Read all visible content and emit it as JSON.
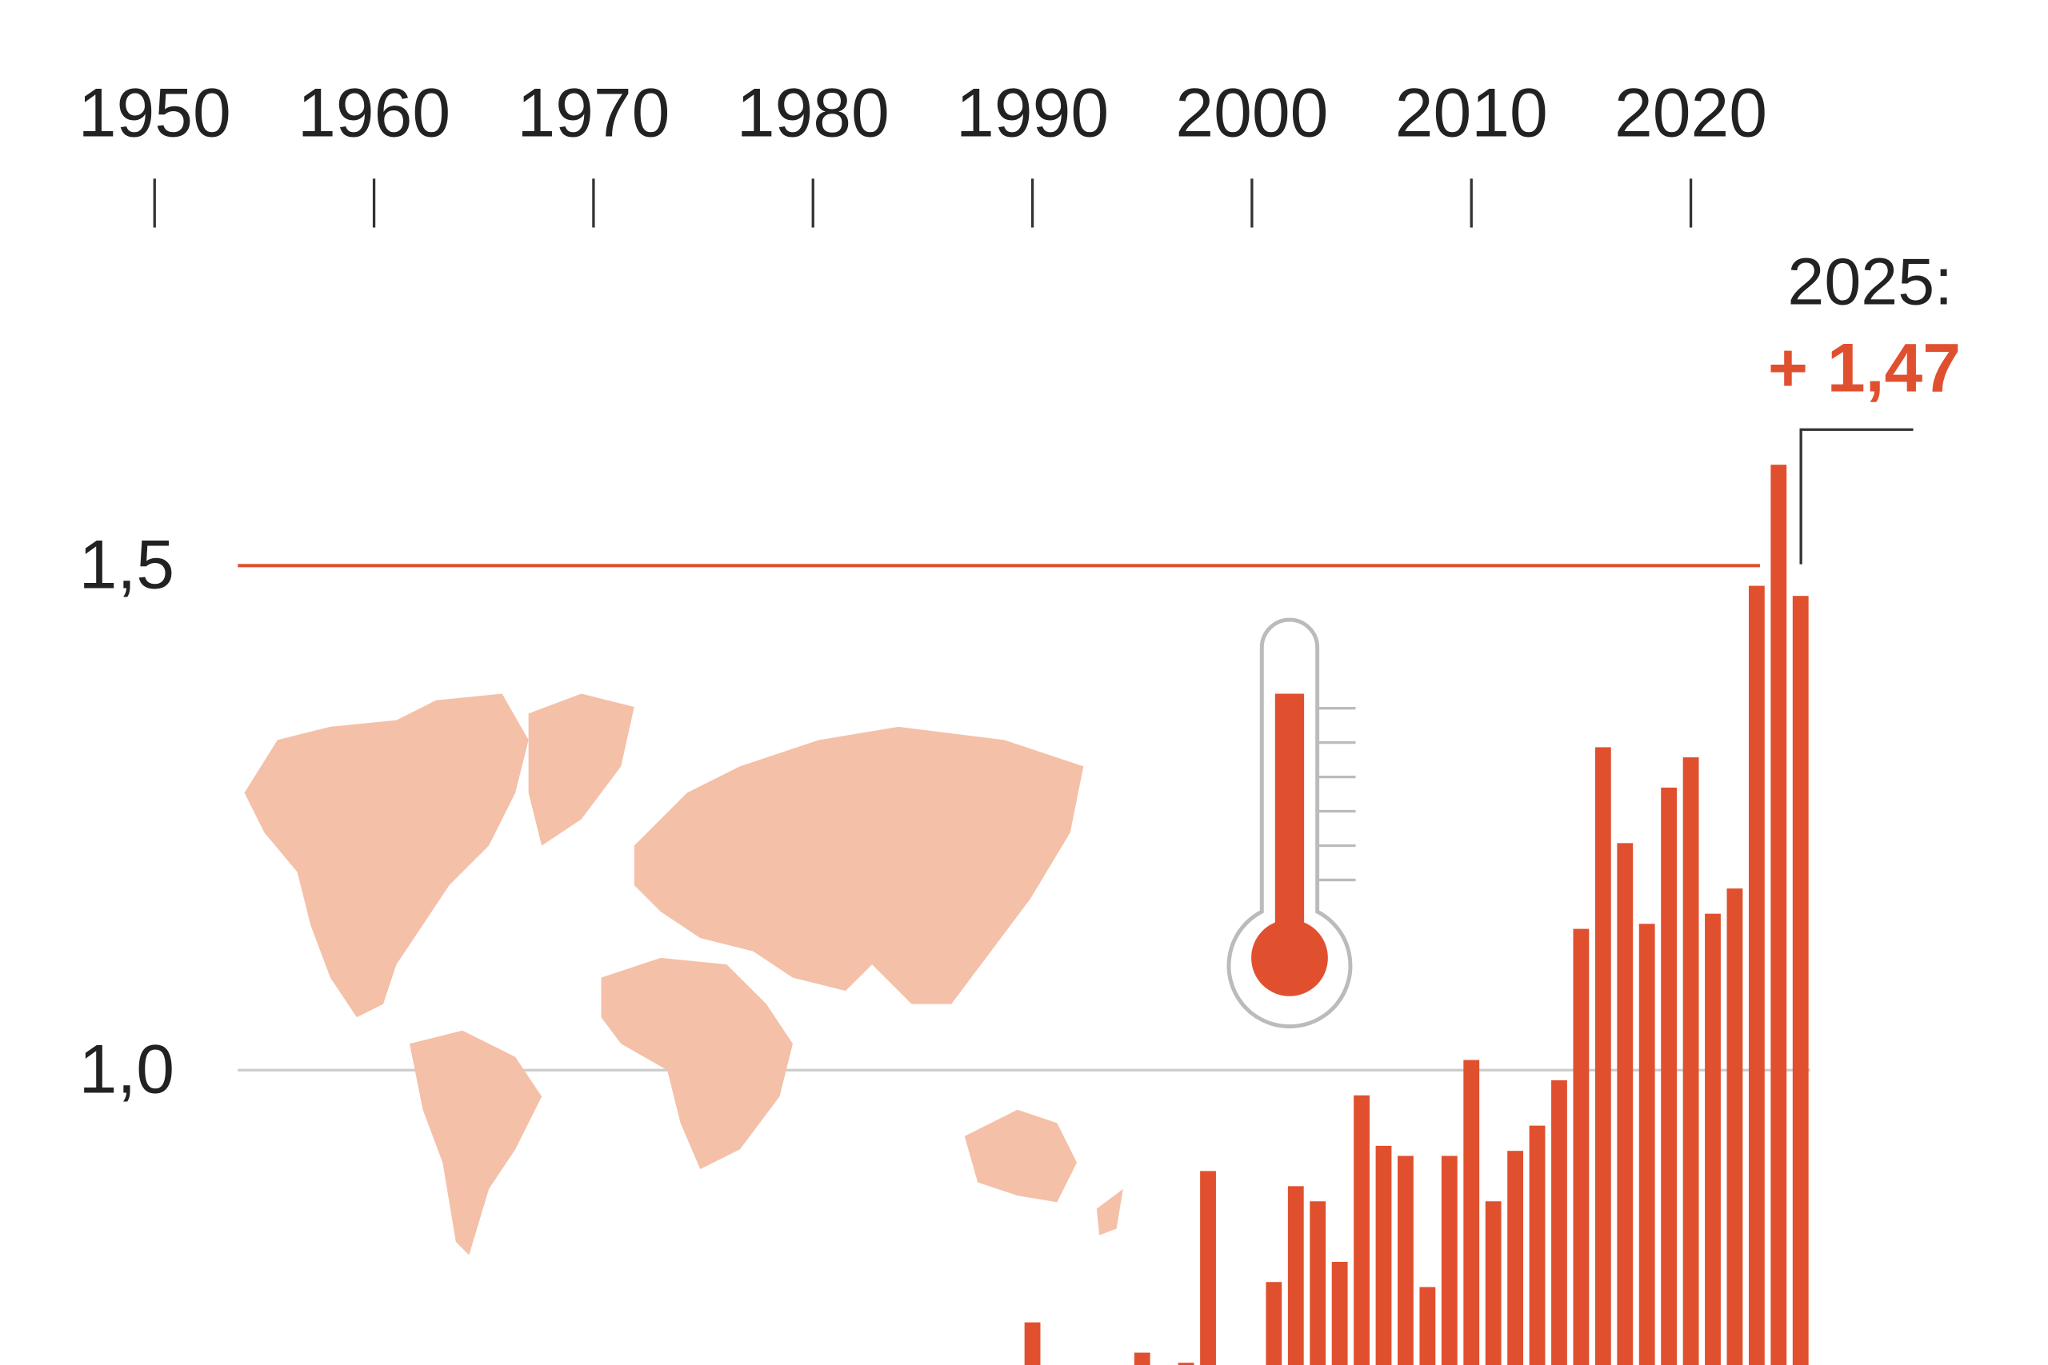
{
  "chart_data": {
    "type": "bar",
    "x_ticks": [
      "1950",
      "1960",
      "1970",
      "1980",
      "1990",
      "2000",
      "2010",
      "2020"
    ],
    "y_ticks": [
      {
        "value": 1.5,
        "label": "1,5"
      },
      {
        "value": 1.0,
        "label": "1,0"
      }
    ],
    "xlim": [
      1950,
      2025
    ],
    "ylim": [
      0.69,
      1.85
    ],
    "grid": "horizontal reference lines at 1,0 and 1,5",
    "reference_line": {
      "value": 1.5,
      "color": "#e0502f"
    },
    "bar_color": "#e0502f",
    "map_color": "#f4c0a8",
    "icons": [
      "world-map",
      "thermometer"
    ],
    "annotation": {
      "year_label": "2025:",
      "value_label": "+ 1,47",
      "year": 2025,
      "value": 1.47
    },
    "bars": [
      {
        "x": 1990,
        "y": 0.75
      },
      {
        "x": 1995,
        "y": 0.72
      },
      {
        "x": 1997,
        "y": 0.71
      },
      {
        "x": 1998,
        "y": 0.9
      },
      {
        "x": 2001,
        "y": 0.79
      },
      {
        "x": 2002,
        "y": 0.885
      },
      {
        "x": 2003,
        "y": 0.87
      },
      {
        "x": 2004,
        "y": 0.81
      },
      {
        "x": 2005,
        "y": 0.975
      },
      {
        "x": 2006,
        "y": 0.925
      },
      {
        "x": 2007,
        "y": 0.915
      },
      {
        "x": 2008,
        "y": 0.785
      },
      {
        "x": 2009,
        "y": 0.915
      },
      {
        "x": 2010,
        "y": 1.01
      },
      {
        "x": 2011,
        "y": 0.87
      },
      {
        "x": 2012,
        "y": 0.92
      },
      {
        "x": 2013,
        "y": 0.945
      },
      {
        "x": 2014,
        "y": 0.99
      },
      {
        "x": 2015,
        "y": 1.14
      },
      {
        "x": 2016,
        "y": 1.32
      },
      {
        "x": 2017,
        "y": 1.225
      },
      {
        "x": 2018,
        "y": 1.145
      },
      {
        "x": 2019,
        "y": 1.28
      },
      {
        "x": 2020,
        "y": 1.31
      },
      {
        "x": 2021,
        "y": 1.155
      },
      {
        "x": 2022,
        "y": 1.18
      },
      {
        "x": 2023,
        "y": 1.48
      },
      {
        "x": 2024,
        "y": 1.6
      },
      {
        "x": 2025,
        "y": 1.47
      }
    ]
  }
}
